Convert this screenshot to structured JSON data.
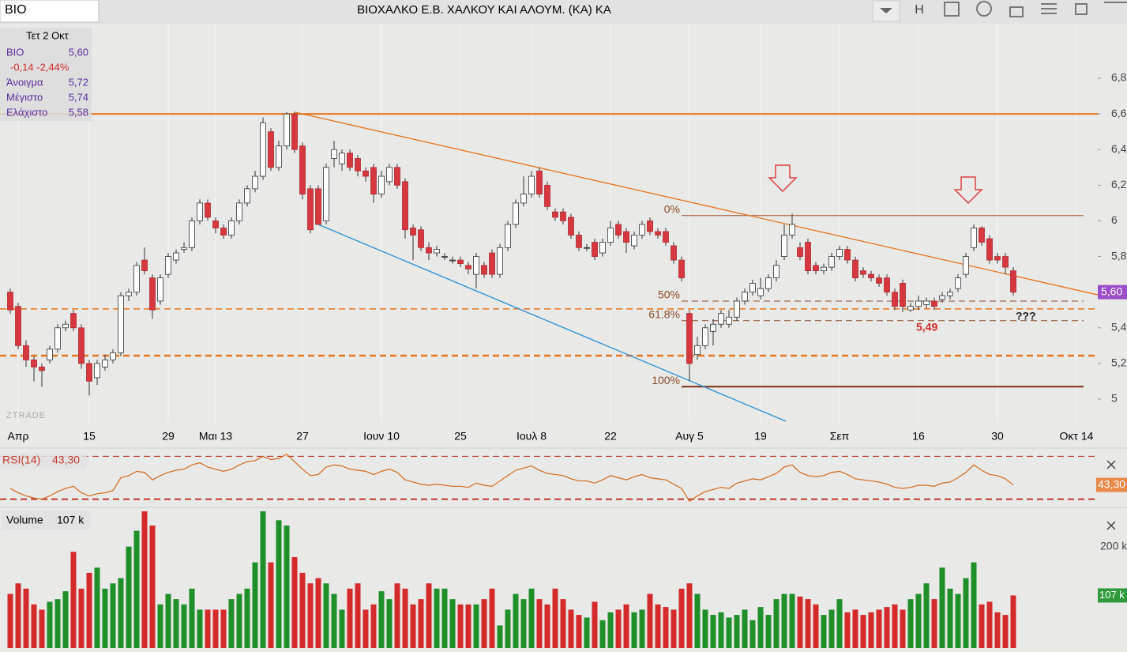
{
  "header": {
    "symbol": "BIO",
    "title": "ΒΙΟΧΑΛΚΟ Ε.Β. ΧΑΛΚΟΥ  ΚΑΙ  ΑΛΟΥΜ. (ΚΑ) ΚΑ",
    "button": "H"
  },
  "chart_data": {
    "type": "candlestick",
    "watermark": "ZTRADE",
    "info": {
      "date": "Τετ 2 Οκτ",
      "symbol": "ΒΙΟ",
      "close": "5,60",
      "change": "-0,14 -2,44%",
      "rows": [
        [
          "Άνοιγμα",
          "5,72"
        ],
        [
          "Μέγιστο",
          "5,74"
        ],
        [
          "Ελάχιστο",
          "5,58"
        ]
      ]
    },
    "open": [
      5.6,
      5.52,
      5.3,
      5.22,
      5.18,
      5.22,
      5.28,
      5.4,
      5.48,
      5.4,
      5.2,
      5.12,
      5.18,
      5.22,
      5.26,
      5.58,
      5.6,
      5.78,
      5.68,
      5.55,
      5.7,
      5.78,
      5.84,
      5.85,
      6.0,
      6.1,
      6.0,
      5.96,
      5.92,
      6.0,
      6.1,
      6.18,
      6.25,
      6.5,
      6.3,
      6.42,
      6.6,
      6.42,
      6.18,
      6.18,
      6.0,
      6.35,
      6.32,
      6.38,
      6.35,
      6.28,
      6.3,
      6.15,
      6.22,
      6.3,
      6.22,
      5.96,
      5.95,
      5.85,
      5.82,
      5.8,
      5.78,
      5.78,
      5.75,
      5.7,
      5.75,
      5.82,
      5.7,
      5.85,
      5.98,
      6.1,
      6.15,
      6.28,
      6.2,
      6.05,
      6.05,
      6.02,
      5.92,
      5.85,
      5.88,
      5.82,
      5.88,
      5.98,
      5.94,
      5.86,
      5.92,
      6.0,
      5.94,
      5.94,
      5.86,
      5.78,
      5.48,
      5.25,
      5.3,
      5.38,
      5.42,
      5.42,
      5.46,
      5.55,
      5.6,
      5.58,
      5.62,
      5.68,
      5.8,
      5.92,
      5.85,
      5.88,
      5.75,
      5.72,
      5.74,
      5.8,
      5.84,
      5.78,
      5.72,
      5.7,
      5.68,
      5.68,
      5.6,
      5.65,
      5.5,
      5.52,
      5.53,
      5.55,
      5.56,
      5.58,
      5.62,
      5.7,
      5.85,
      5.96,
      5.9,
      5.8,
      5.8,
      5.72
    ],
    "high": [
      5.62,
      5.54,
      5.33,
      5.24,
      5.2,
      5.3,
      5.42,
      5.44,
      5.5,
      5.42,
      5.22,
      5.22,
      5.25,
      5.28,
      5.6,
      5.62,
      5.77,
      5.85,
      5.7,
      5.7,
      5.82,
      5.84,
      5.88,
      6.02,
      6.12,
      6.12,
      6.02,
      5.98,
      6.02,
      6.12,
      6.2,
      6.28,
      6.58,
      6.52,
      6.45,
      6.61,
      6.61,
      6.44,
      6.2,
      6.2,
      6.32,
      6.45,
      6.4,
      6.4,
      6.37,
      6.3,
      6.32,
      6.28,
      6.32,
      6.32,
      6.24,
      5.98,
      5.97,
      5.88,
      5.86,
      5.82,
      5.8,
      5.8,
      5.77,
      5.82,
      5.77,
      5.84,
      5.87,
      6.0,
      6.12,
      6.25,
      6.28,
      6.3,
      6.22,
      6.07,
      6.07,
      6.04,
      5.94,
      5.87,
      5.9,
      5.9,
      6.0,
      6.0,
      5.96,
      5.94,
      6.0,
      6.02,
      5.96,
      5.96,
      5.88,
      5.8,
      5.5,
      5.35,
      5.42,
      5.45,
      5.5,
      5.5,
      5.57,
      5.62,
      5.67,
      5.68,
      5.7,
      5.78,
      5.98,
      6.04,
      5.88,
      5.9,
      5.77,
      5.76,
      5.82,
      5.86,
      5.86,
      5.8,
      5.74,
      5.72,
      5.7,
      5.7,
      5.62,
      5.67,
      5.54,
      5.58,
      5.57,
      5.57,
      5.6,
      5.62,
      5.7,
      5.82,
      5.98,
      5.97,
      5.92,
      5.82,
      5.82,
      5.74
    ],
    "low": [
      5.48,
      5.28,
      5.18,
      5.1,
      5.07,
      5.2,
      5.26,
      5.38,
      5.38,
      5.17,
      5.02,
      5.08,
      5.16,
      5.2,
      5.24,
      5.55,
      5.58,
      5.7,
      5.45,
      5.53,
      5.68,
      5.76,
      5.82,
      5.83,
      5.98,
      6.0,
      5.93,
      5.9,
      5.9,
      5.98,
      6.08,
      6.16,
      6.23,
      6.28,
      6.28,
      6.4,
      6.38,
      6.12,
      5.93,
      5.98,
      5.98,
      6.3,
      6.28,
      6.28,
      6.25,
      6.22,
      6.1,
      6.13,
      6.2,
      6.18,
      5.9,
      5.78,
      5.83,
      5.78,
      5.8,
      5.78,
      5.76,
      5.74,
      5.7,
      5.62,
      5.68,
      5.68,
      5.68,
      5.83,
      5.96,
      6.08,
      6.13,
      6.13,
      6.06,
      6.0,
      5.98,
      5.9,
      5.83,
      5.83,
      5.78,
      5.8,
      5.86,
      5.9,
      5.82,
      5.84,
      5.9,
      5.92,
      5.9,
      5.86,
      5.76,
      5.66,
      5.1,
      5.22,
      5.28,
      5.3,
      5.4,
      5.4,
      5.44,
      5.53,
      5.58,
      5.56,
      5.6,
      5.66,
      5.78,
      5.9,
      5.78,
      5.7,
      5.7,
      5.7,
      5.72,
      5.78,
      5.76,
      5.66,
      5.68,
      5.66,
      5.63,
      5.58,
      5.5,
      5.49,
      5.49,
      5.5,
      5.51,
      5.5,
      5.54,
      5.56,
      5.6,
      5.68,
      5.83,
      5.86,
      5.76,
      5.76,
      5.7,
      5.58
    ],
    "close": [
      5.5,
      5.3,
      5.22,
      5.18,
      5.16,
      5.28,
      5.4,
      5.42,
      5.4,
      5.2,
      5.1,
      5.2,
      5.22,
      5.26,
      5.58,
      5.6,
      5.75,
      5.72,
      5.5,
      5.68,
      5.8,
      5.82,
      5.85,
      6.0,
      6.1,
      6.02,
      5.96,
      5.92,
      6.0,
      6.1,
      6.18,
      6.25,
      6.55,
      6.3,
      6.42,
      6.6,
      6.4,
      6.15,
      5.95,
      5.98,
      6.3,
      6.4,
      6.38,
      6.3,
      6.28,
      6.25,
      6.15,
      6.25,
      6.3,
      6.2,
      5.95,
      5.92,
      5.85,
      5.82,
      5.84,
      5.8,
      5.78,
      5.76,
      5.73,
      5.8,
      5.7,
      5.7,
      5.85,
      5.98,
      6.1,
      6.15,
      6.25,
      6.15,
      6.08,
      6.02,
      6.0,
      5.92,
      5.85,
      5.85,
      5.8,
      5.88,
      5.96,
      5.92,
      5.88,
      5.92,
      5.98,
      5.94,
      5.92,
      5.88,
      5.78,
      5.68,
      5.2,
      5.3,
      5.4,
      5.42,
      5.48,
      5.46,
      5.55,
      5.6,
      5.65,
      5.62,
      5.68,
      5.75,
      5.92,
      5.98,
      5.8,
      5.72,
      5.72,
      5.74,
      5.8,
      5.84,
      5.78,
      5.68,
      5.7,
      5.68,
      5.65,
      5.6,
      5.52,
      5.52,
      5.52,
      5.55,
      5.55,
      5.52,
      5.58,
      5.6,
      5.68,
      5.8,
      5.96,
      5.88,
      5.78,
      5.78,
      5.74,
      5.6
    ],
    "colors": {
      "up": "#ffffff",
      "down": "#d7373f",
      "flat": "#555555"
    },
    "xlim": [
      -1.3,
      137.7
    ],
    "xticks": [
      {
        "value": 1,
        "label": "Απρ"
      },
      {
        "value": 10,
        "label": "15"
      },
      {
        "value": 20,
        "label": "29"
      },
      {
        "value": 26,
        "label": "Μαι 13"
      },
      {
        "value": 37,
        "label": "27"
      },
      {
        "value": 47,
        "label": "Ιουν 10"
      },
      {
        "value": 57,
        "label": "25"
      },
      {
        "value": 66,
        "label": "Ιουλ 8"
      },
      {
        "value": 76,
        "label": "22"
      },
      {
        "value": 86,
        "label": "Αυγ 5"
      },
      {
        "value": 95,
        "label": "19"
      },
      {
        "value": 105,
        "label": "Σεπ"
      },
      {
        "value": 115,
        "label": "16"
      },
      {
        "value": 125,
        "label": "30"
      },
      {
        "value": 135,
        "label": "Οκτ 14"
      }
    ],
    "ylim": [
      4.867,
      7.106
    ],
    "yticks": [
      {
        "value": 5.0,
        "label": "5"
      },
      {
        "value": 5.2,
        "label": "5,2"
      },
      {
        "value": 5.4,
        "label": "5,4"
      },
      {
        "value": 5.6,
        "label": "5,6"
      },
      {
        "value": 5.8,
        "label": "5,8"
      },
      {
        "value": 6.0,
        "label": "6"
      },
      {
        "value": 6.2,
        "label": "6,2"
      },
      {
        "value": 6.4,
        "label": "6,4"
      },
      {
        "value": 6.6,
        "label": "6,6"
      },
      {
        "value": 6.8,
        "label": "6,8"
      }
    ],
    "levels": [
      {
        "value": 6.6,
        "color": "#e8741e",
        "width": 2,
        "dash": false
      },
      {
        "value": 5.506,
        "color": "#e8741e",
        "width": 1.5,
        "dash": true
      },
      {
        "value": 5.244,
        "color": "#e8741e",
        "width": 2.5,
        "dash": true
      },
      {
        "value": 6.03,
        "label": "0%",
        "from": 85,
        "color": "#a0522d",
        "width": 1,
        "dash": false
      },
      {
        "value": 5.55,
        "label": "50%",
        "from": 85,
        "color": "#8b4a2a",
        "width": 1,
        "dash": true
      },
      {
        "value": 5.44,
        "label": "61.8%",
        "from": 85,
        "color": "#8b4a2a",
        "width": 1,
        "dash": true
      },
      {
        "value": 5.07,
        "label": "100%",
        "from": 85,
        "color": "#7a2e10",
        "width": 2,
        "dash": false
      }
    ],
    "trendlines": [
      {
        "x": [
          36,
          137.7
        ],
        "y": [
          6.61,
          5.585
        ],
        "color": "#e8741e"
      },
      {
        "x": [
          39,
          98.2
        ],
        "y": [
          5.98,
          4.876
        ],
        "color": "#2a8fd6"
      }
    ],
    "annotations": [
      "5,49",
      "???"
    ],
    "rsi": {
      "name": "RSI(14)",
      "value_label": "43,30",
      "color": "#d2691e",
      "ylim": [
        22.3,
        77.7
      ],
      "levels": [
        30,
        70
      ],
      "values": [
        40,
        36,
        33,
        31,
        30,
        33,
        37,
        40,
        42,
        36,
        33,
        35,
        36,
        38,
        50,
        52,
        56,
        55,
        48,
        52,
        55,
        57,
        58,
        62,
        64,
        60,
        58,
        56,
        58,
        62,
        65,
        66,
        70,
        67,
        68,
        72,
        65,
        58,
        52,
        53,
        60,
        62,
        61,
        58,
        57,
        56,
        53,
        56,
        58,
        55,
        48,
        46,
        44,
        43,
        44,
        43,
        42,
        42,
        41,
        45,
        43,
        42,
        47,
        52,
        57,
        59,
        61,
        57,
        54,
        53,
        52,
        49,
        47,
        47,
        45,
        48,
        52,
        50,
        48,
        51,
        53,
        50,
        49,
        48,
        44,
        40,
        28,
        33,
        37,
        39,
        41,
        40,
        45,
        47,
        49,
        48,
        51,
        54,
        60,
        62,
        55,
        52,
        51,
        52,
        55,
        56,
        53,
        49,
        48,
        47,
        46,
        44,
        41,
        40,
        41,
        43,
        43,
        42,
        45,
        46,
        50,
        55,
        62,
        57,
        53,
        52,
        49,
        43.3
      ]
    },
    "volume": {
      "name": "Volume",
      "value_label": "107 k",
      "ylim": [
        7,
        270
      ],
      "yticks": [
        {
          "value": 200,
          "label": "200 k"
        }
      ],
      "up_color": "#1f8f2a",
      "down_color": "#d42a2a",
      "values": [
        110,
        130,
        120,
        90,
        80,
        95,
        100,
        115,
        190,
        120,
        150,
        160,
        120,
        130,
        140,
        200,
        230,
        267,
        240,
        90,
        110,
        100,
        90,
        120,
        80,
        80,
        80,
        80,
        100,
        110,
        120,
        170,
        267,
        170,
        250,
        240,
        180,
        150,
        130,
        140,
        130,
        110,
        80,
        120,
        130,
        80,
        90,
        115,
        100,
        130,
        120,
        90,
        100,
        130,
        120,
        120,
        100,
        90,
        90,
        90,
        100,
        120,
        50,
        80,
        110,
        100,
        120,
        100,
        90,
        120,
        100,
        80,
        70,
        65,
        95,
        60,
        75,
        80,
        90,
        75,
        80,
        110,
        90,
        85,
        80,
        120,
        130,
        110,
        80,
        70,
        75,
        65,
        70,
        80,
        60,
        85,
        70,
        100,
        110,
        110,
        105,
        100,
        90,
        70,
        80,
        100,
        75,
        80,
        70,
        75,
        80,
        85,
        90,
        80,
        100,
        110,
        130,
        100,
        160,
        120,
        110,
        140,
        170,
        90,
        95,
        75,
        70,
        107
      ]
    }
  }
}
